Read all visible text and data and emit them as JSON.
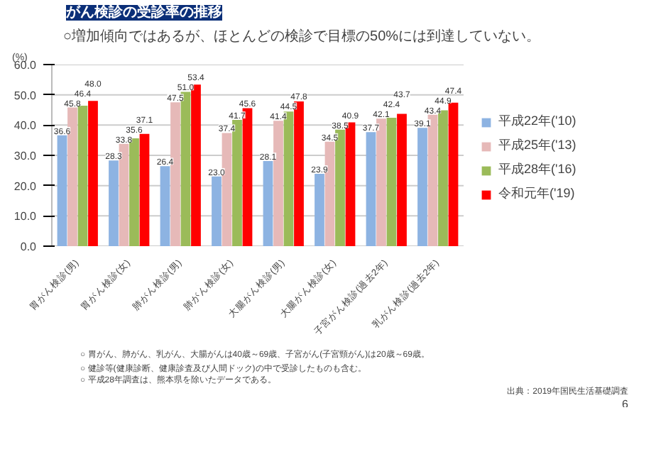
{
  "chart_data": {
    "type": "bar",
    "title": "がん検診の受診率の推移",
    "subtitle": "○増加傾向ではあるが、ほとんどの検診で目標の50%には到達していない。",
    "ylabel": "(%)",
    "categories": [
      "胃がん検診(男)",
      "胃がん検診(女)",
      "肺がん検診(男)",
      "肺がん検診(女)",
      "大腸がん検診(男)",
      "大腸がん検診(女)",
      "子宮がん検診(過去2年)",
      "乳がん検診(過去2年)"
    ],
    "series": [
      {
        "name": "平成22年('10)",
        "color": "#8db3e2",
        "values": [
          36.6,
          28.3,
          26.4,
          23.0,
          28.1,
          23.9,
          37.7,
          39.1
        ],
        "value_labels": [
          "36.6",
          "28.3",
          "26.4",
          "23.0",
          "28.1",
          "23.9",
          "37.7",
          "39.1"
        ]
      },
      {
        "name": "平成25年('13)",
        "color": "#e6b9b8",
        "values": [
          45.8,
          33.8,
          47.5,
          37.4,
          41.4,
          34.5,
          42.1,
          43.4
        ],
        "value_labels": [
          "45.8",
          "33.8",
          "47.5",
          "37.4",
          "41.4",
          "34.5",
          "42.1",
          "43.4"
        ]
      },
      {
        "name": "平成28年('16)",
        "color": "#9bbb59",
        "values": [
          46.4,
          35.6,
          51.0,
          41.7,
          44.5,
          38.5,
          42.4,
          44.9
        ],
        "value_labels": [
          "46.4",
          "35.6",
          "51.0",
          "41.7",
          "44.5",
          "38.5",
          "42.4",
          "44.9"
        ]
      },
      {
        "name": "令和元年('19)",
        "color": "#ff0000",
        "values": [
          48.0,
          37.1,
          53.4,
          45.6,
          47.8,
          40.9,
          43.7,
          47.4
        ],
        "value_labels": [
          "48.0",
          "37.1",
          "53.4",
          "45.6",
          "47.8",
          "40.9",
          "43.7",
          "47.4"
        ]
      }
    ],
    "ylim": [
      0,
      60
    ],
    "yticks": [
      {
        "value": 0,
        "label": "0.0"
      },
      {
        "value": 10,
        "label": "10.0"
      },
      {
        "value": 20,
        "label": "20.0"
      },
      {
        "value": 30,
        "label": "30.0"
      },
      {
        "value": 40,
        "label": "40.0"
      },
      {
        "value": 50,
        "label": "50.0"
      },
      {
        "value": 60,
        "label": "60.0"
      }
    ],
    "grid": "y",
    "legend": "right",
    "annotations": [
      "○ 胃がん、肺がん、乳がん、大腸がんは40歳～69歳、子宮がん(子宮頸がん)は20歳～69歳。",
      "○ 健診等(健康診断、健康診査及び人間ドック)の中で受診したものも含む。",
      "○ 平成28年調査は、熊本県を除いたデータである。",
      "出典：2019年国民生活基礎調査",
      "6"
    ]
  }
}
